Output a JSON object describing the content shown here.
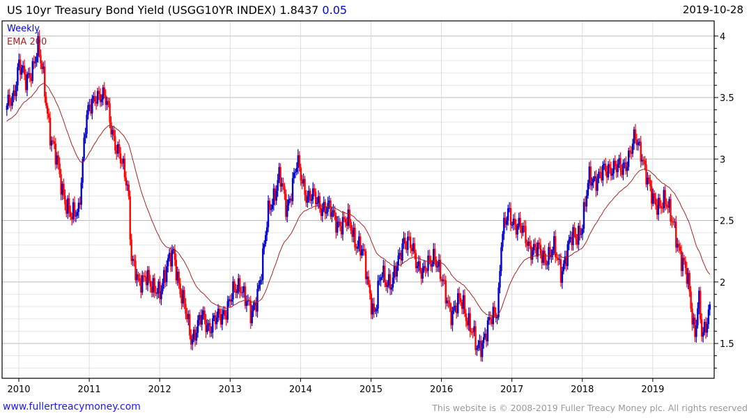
{
  "header": {
    "title": "US 10yr Treasury Bond Yield (USGG10YR INDEX)",
    "last_value": "1.8437",
    "change": "0.05",
    "date": "2019-10-28"
  },
  "footer": {
    "link": "www.fullertreacymoney.com",
    "copyright": "This website is © 2008-2019 Fuller Treacy Money plc. All rights reserved"
  },
  "colors": {
    "up": "#0000cc",
    "down": "#ff0000",
    "ema": "#aa2222",
    "legend_weekly": "#0000ee"
  },
  "chart_data": {
    "type": "line",
    "title": "US 10yr Treasury Bond Yield (USGG10YR INDEX)",
    "legend": [
      "Weekly",
      "EMA 200"
    ],
    "legend_position": "top-left",
    "x_ticks": [
      "2010",
      "2011",
      "2012",
      "2013",
      "2014",
      "2015",
      "2016",
      "2017",
      "2018",
      "2019"
    ],
    "y_ticks": [
      "1.5",
      "2",
      "2.5",
      "3",
      "3.5",
      "4"
    ],
    "xlim": [
      2009.85,
      2019.95
    ],
    "ylim": [
      1.21,
      4.1
    ],
    "grid": true,
    "series": [
      {
        "name": "Weekly (approx. close keypoints)",
        "x": [
          2009.83,
          2009.92,
          2010.0,
          2010.1,
          2010.27,
          2010.35,
          2010.45,
          2010.6,
          2010.75,
          2010.85,
          2010.95,
          2011.1,
          2011.25,
          2011.4,
          2011.55,
          2011.6,
          2011.7,
          2011.8,
          2011.9,
          2012.0,
          2012.2,
          2012.3,
          2012.45,
          2012.6,
          2012.7,
          2012.85,
          2013.0,
          2013.15,
          2013.3,
          2013.45,
          2013.55,
          2013.7,
          2013.8,
          2013.95,
          2014.1,
          2014.25,
          2014.45,
          2014.6,
          2014.7,
          2014.8,
          2014.9,
          2015.05,
          2015.15,
          2015.3,
          2015.45,
          2015.6,
          2015.75,
          2015.9,
          2016.0,
          2016.15,
          2016.3,
          2016.5,
          2016.6,
          2016.8,
          2016.85,
          2016.95,
          2017.1,
          2017.25,
          2017.45,
          2017.6,
          2017.7,
          2017.85,
          2018.0,
          2018.1,
          2018.25,
          2018.4,
          2018.55,
          2018.75,
          2018.85,
          2018.95,
          2019.0,
          2019.15,
          2019.3,
          2019.4,
          2019.5,
          2019.6,
          2019.65,
          2019.7,
          2019.82
        ],
        "y": [
          3.4,
          3.5,
          3.8,
          3.6,
          3.9,
          3.65,
          3.2,
          2.8,
          2.5,
          2.6,
          3.3,
          3.55,
          3.45,
          3.05,
          2.8,
          2.2,
          1.95,
          2.1,
          1.9,
          1.95,
          2.25,
          1.9,
          1.55,
          1.7,
          1.65,
          1.7,
          1.85,
          2.0,
          1.7,
          2.1,
          2.6,
          2.85,
          2.6,
          2.95,
          2.7,
          2.65,
          2.55,
          2.45,
          2.5,
          2.3,
          2.2,
          1.7,
          2.1,
          1.95,
          2.35,
          2.25,
          2.05,
          2.25,
          2.0,
          1.75,
          1.85,
          1.45,
          1.55,
          1.8,
          2.35,
          2.55,
          2.45,
          2.3,
          2.2,
          2.25,
          2.1,
          2.35,
          2.45,
          2.85,
          2.85,
          2.95,
          2.9,
          3.15,
          3.05,
          2.75,
          2.65,
          2.65,
          2.5,
          2.15,
          2.05,
          1.55,
          1.85,
          1.55,
          1.84
        ]
      },
      {
        "name": "EMA 200",
        "computed": "exponential moving average of weekly closes"
      }
    ]
  }
}
